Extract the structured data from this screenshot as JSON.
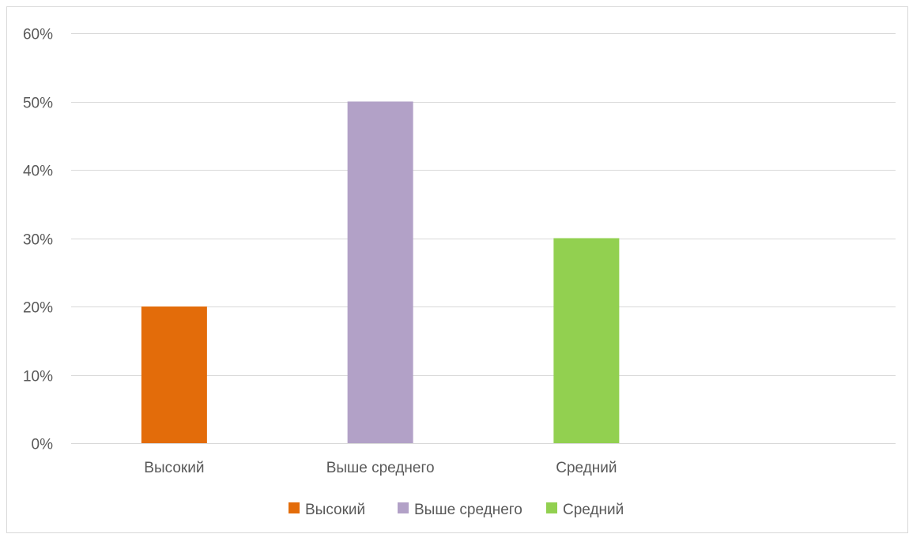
{
  "chart_data": {
    "type": "bar",
    "categories": [
      "Высокий",
      "Выше среднего",
      "Средний"
    ],
    "series": [
      {
        "name": "Высокий",
        "category": "Высокий",
        "value": 0.2,
        "color": "#E36C0A"
      },
      {
        "name": "Выше среднего",
        "category": "Выше среднего",
        "value": 0.5,
        "color": "#B2A1C7"
      },
      {
        "name": "Средний",
        "category": "Средний",
        "value": 0.3,
        "color": "#92D050"
      }
    ],
    "values": [
      0.2,
      0.5,
      0.3
    ],
    "ylim": [
      0,
      0.6
    ],
    "yticks": [
      0,
      0.1,
      0.2,
      0.3,
      0.4,
      0.5,
      0.6
    ],
    "ytick_labels": [
      "0%",
      "10%",
      "20%",
      "30%",
      "40%",
      "50%",
      "60%"
    ],
    "title": "",
    "xlabel": "",
    "ylabel": "",
    "grid": true,
    "legend_position": "bottom",
    "gridline_color": "#D9D9D9",
    "label_color": "#595959"
  }
}
